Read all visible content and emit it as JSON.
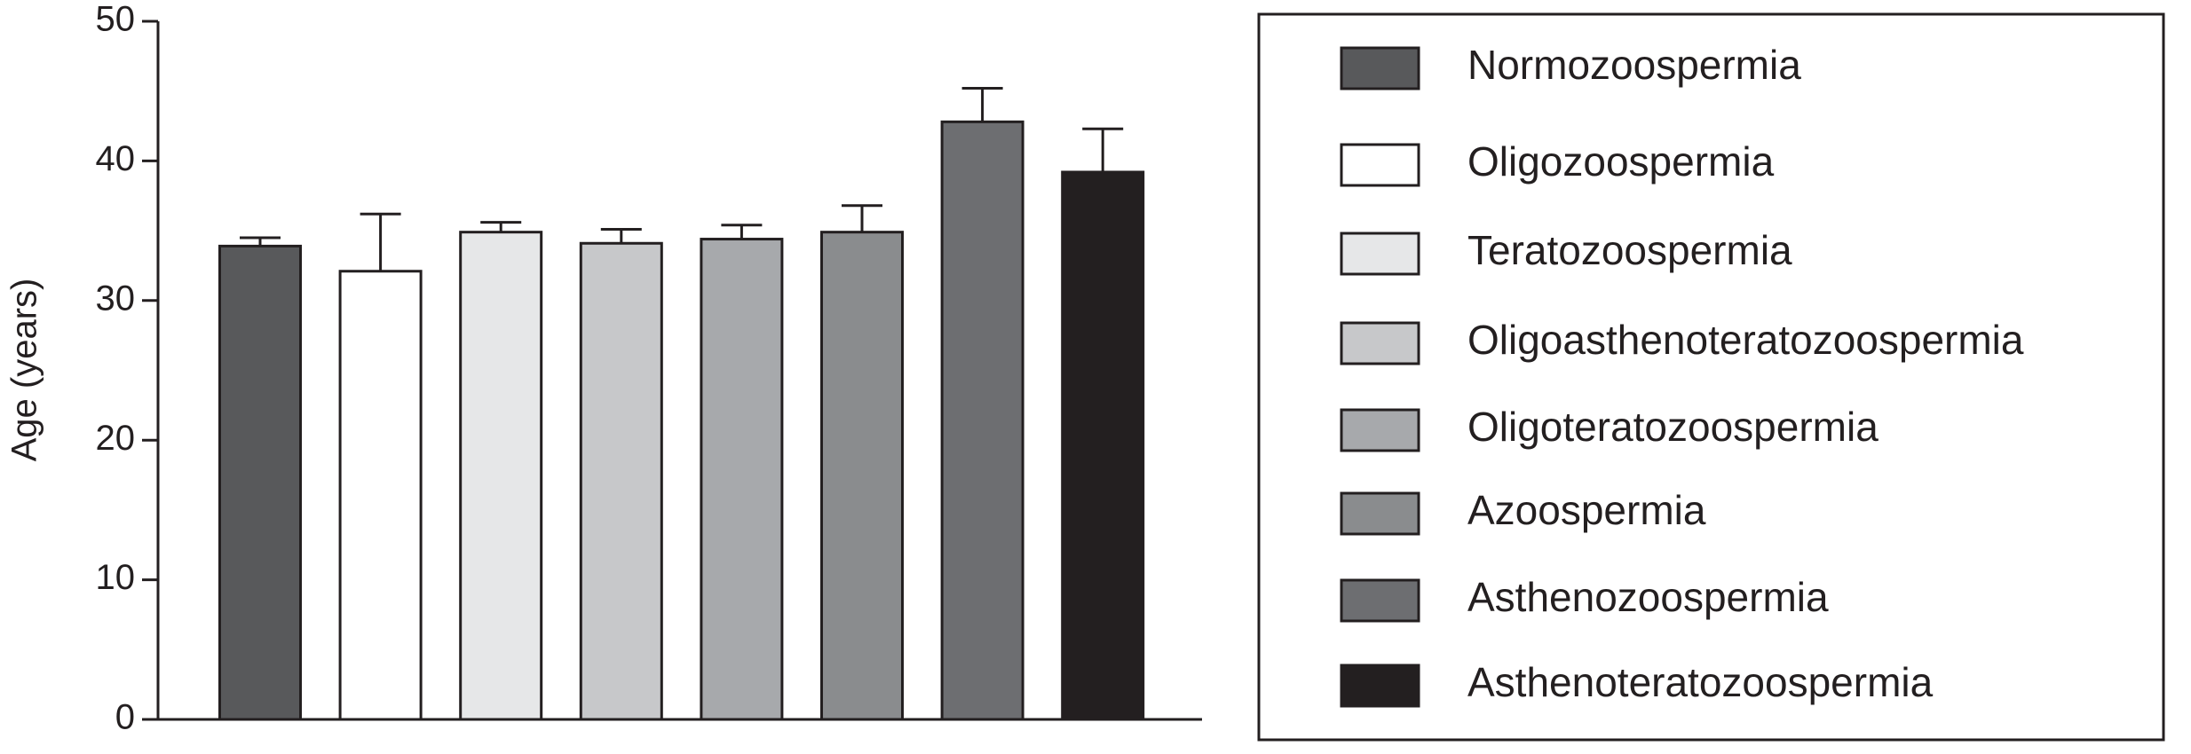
{
  "chart_data": {
    "type": "bar",
    "y_label": "Age (years)",
    "categories": [
      "Normozoospermia",
      "Oligozoospermia",
      "Teratozoospermia",
      "Oligoasthenoteratozoospermia",
      "Oligoteratozoospermia",
      "Azoospermia",
      "Asthenozoospermia",
      "Asthenoteratozoospermia"
    ],
    "values": [
      33.9,
      32.1,
      34.9,
      34.1,
      34.4,
      34.9,
      42.8,
      39.2
    ],
    "errors": [
      0.6,
      4.1,
      0.7,
      1.0,
      1.0,
      1.9,
      2.4,
      3.1
    ],
    "colors": [
      "#58595b",
      "#ffffff",
      "#e6e7e8",
      "#c7c8ca",
      "#a7a9ac",
      "#8a8c8e",
      "#6d6e71",
      "#231f20"
    ],
    "ylim": [
      0,
      50
    ],
    "yticks": [
      0,
      10,
      20,
      30,
      40,
      50
    ]
  }
}
